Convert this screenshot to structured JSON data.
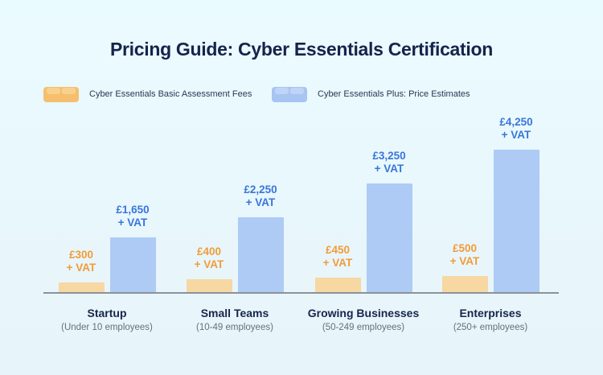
{
  "title": "Pricing Guide: Cyber Essentials Certification",
  "legend": {
    "items": [
      {
        "label": "Cyber Essentials Basic Assessment Fees",
        "swatch_color": "#F5BF6D",
        "swatch_highlight": "#F8D494"
      },
      {
        "label": "Cyber Essentials Plus: Price Estimates",
        "swatch_color": "#A7C4F2",
        "swatch_highlight": "#C3D7F9"
      }
    ]
  },
  "chart_data": {
    "type": "bar",
    "title": "Pricing Guide: Cyber Essentials Certification",
    "categories": [
      "Startup",
      "Small Teams",
      "Growing Businesses",
      "Enterprises"
    ],
    "category_sublabels": [
      "(Under 10 employees)",
      "(10-49 employees)",
      "(50-249 employees)",
      "(250+ employees)"
    ],
    "series": [
      {
        "name": "Cyber Essentials Basic Assessment Fees",
        "values": [
          300,
          400,
          450,
          500
        ],
        "value_labels": [
          "£300",
          "£400",
          "£450",
          "£500"
        ],
        "bar_color": "#F7D7A2",
        "label_color": "#F39B37"
      },
      {
        "name": "Cyber Essentials Plus: Price Estimates",
        "values": [
          1650,
          2250,
          3250,
          4250
        ],
        "value_labels": [
          "£1,650",
          "£2,250",
          "£3,250",
          "£4,250"
        ],
        "bar_color": "#AECBF5",
        "label_color": "#3A75DB"
      }
    ],
    "value_suffix": "+ VAT",
    "currency": "GBP",
    "ylim": [
      0,
      4500
    ],
    "grid": false,
    "legend_position": "top",
    "baseline_axis": true
  },
  "colors": {
    "background_top": "#EAFBFF",
    "background_bottom": "#E7F4F9",
    "title_text": "#16234B",
    "category_text": "#16254C",
    "sublabel_text": "#66707E",
    "axis_line": "#8B929B",
    "legend_text": "#2A3850"
  }
}
